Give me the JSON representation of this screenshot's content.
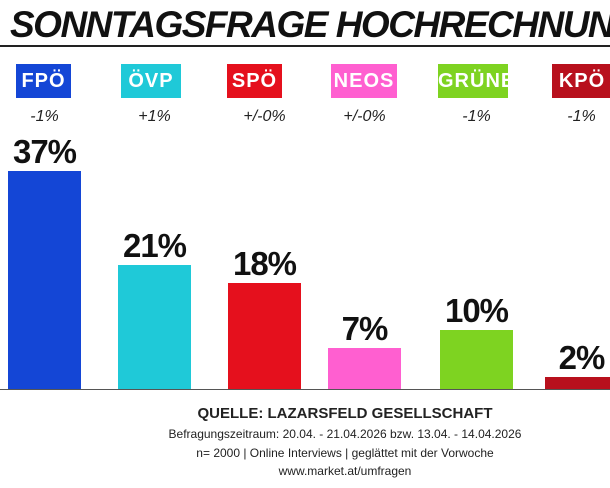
{
  "title": "SONNTAGSFRAGE HOCHRECHNUNG",
  "footer": {
    "source": "QUELLE: LAZARSFELD GESELLSCHAFT",
    "period": "Befragungszeitraum: 20.04. - 21.04.2026  bzw.  13.04. - 14.04.2026",
    "method": "n= 2000 | Online Interviews | geglättet mit der Vorwoche",
    "url": "www.market.at/umfragen"
  },
  "chart_data": {
    "type": "bar",
    "categories": [
      "FPÖ",
      "ÖVP",
      "SPÖ",
      "NEOS",
      "GRÜNE",
      "KPÖ"
    ],
    "values": [
      37,
      21,
      18,
      7,
      10,
      2
    ],
    "value_labels": [
      "37%",
      "21%",
      "18%",
      "7%",
      "10%",
      "2%"
    ],
    "changes": [
      "-1%",
      "+1%",
      "+/-0%",
      "+/-0%",
      "-1%",
      "-1%"
    ],
    "colors": [
      "#1446d6",
      "#1fc9d8",
      "#e5101d",
      "#ff5fd0",
      "#7ed321",
      "#b8101d"
    ],
    "ylim": [
      0,
      37
    ]
  }
}
